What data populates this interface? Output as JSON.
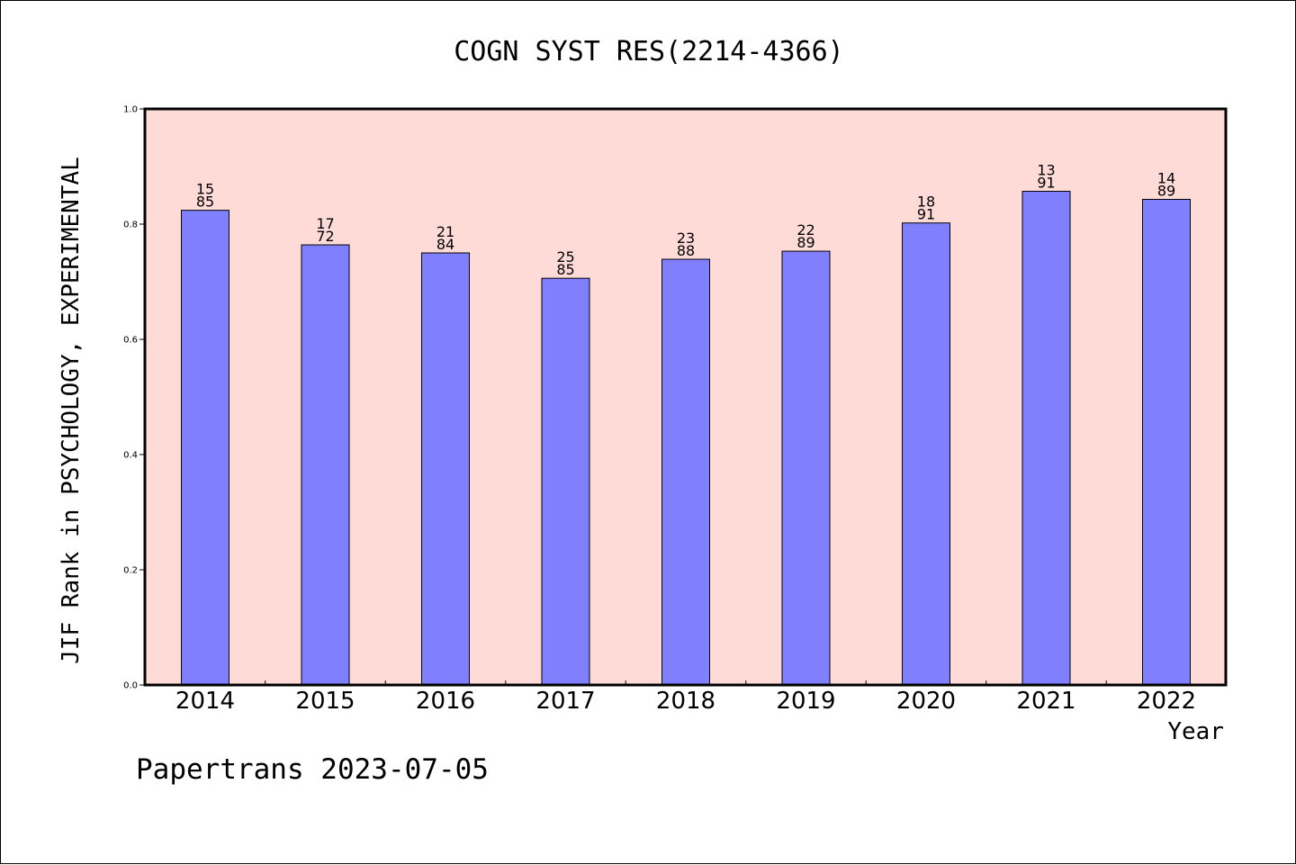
{
  "chart_data": {
    "type": "bar",
    "title": "COGN SYST RES(2214-4366)",
    "xlabel": "Year",
    "ylabel": "JIF Rank in PSYCHOLOGY, EXPERIMENTAL",
    "categories": [
      "2014",
      "2015",
      "2016",
      "2017",
      "2018",
      "2019",
      "2020",
      "2021",
      "2022"
    ],
    "values": [
      0.824,
      0.764,
      0.75,
      0.706,
      0.739,
      0.753,
      0.802,
      0.857,
      0.843
    ],
    "bar_labels": [
      [
        "15",
        "85"
      ],
      [
        "17",
        "72"
      ],
      [
        "21",
        "84"
      ],
      [
        "25",
        "85"
      ],
      [
        "23",
        "88"
      ],
      [
        "22",
        "89"
      ],
      [
        "18",
        "91"
      ],
      [
        "13",
        "91"
      ],
      [
        "14",
        "89"
      ]
    ],
    "ylim": [
      0,
      1.0
    ],
    "yticks": [
      "0.0",
      "0.2",
      "0.4",
      "0.6",
      "0.8",
      "1.0"
    ],
    "grid": false,
    "colors": {
      "bar": "#8080ff",
      "plot_background": "#ffdbd8",
      "axis": "#000000"
    }
  },
  "footer": {
    "watermark": "Papertrans 2023-07-05"
  }
}
